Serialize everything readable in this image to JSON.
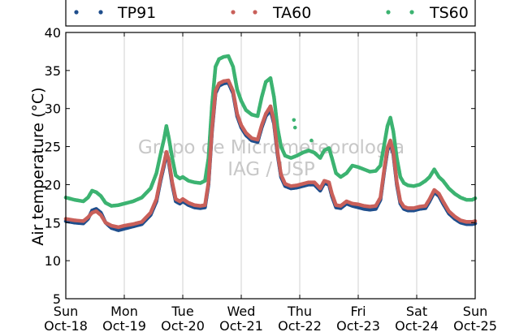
{
  "chart_data": {
    "type": "scatter",
    "ylabel": "Air temperature (°C)",
    "ylim": [
      5,
      40
    ],
    "yticks": [
      5,
      10,
      15,
      20,
      25,
      30,
      35,
      40
    ],
    "xlim": [
      0,
      7
    ],
    "xticks": [
      {
        "x": 0,
        "day": "Sun",
        "date": "Oct-18"
      },
      {
        "x": 1,
        "day": "Mon",
        "date": "Oct-19"
      },
      {
        "x": 2,
        "day": "Tue",
        "date": "Oct-20"
      },
      {
        "x": 3,
        "day": "Wed",
        "date": "Oct-21"
      },
      {
        "x": 4,
        "day": "Thu",
        "date": "Oct-22"
      },
      {
        "x": 5,
        "day": "Fri",
        "date": "Oct-23"
      },
      {
        "x": 6,
        "day": "Sat",
        "date": "Oct-24"
      },
      {
        "x": 7,
        "day": "Sun",
        "date": "Oct-25"
      }
    ],
    "grid": "vertical",
    "legend_position": "top",
    "watermark": [
      "Grupo de Micrometeorologia",
      "IAG / USP"
    ],
    "series": [
      {
        "name": "TP91",
        "color": "#1f4e8c",
        "points": [
          [
            0.0,
            15.2
          ],
          [
            0.15,
            15.0
          ],
          [
            0.3,
            14.9
          ],
          [
            0.38,
            15.5
          ],
          [
            0.45,
            16.6
          ],
          [
            0.52,
            16.8
          ],
          [
            0.6,
            16.3
          ],
          [
            0.68,
            15.0
          ],
          [
            0.78,
            14.3
          ],
          [
            0.9,
            14.0
          ],
          [
            1.0,
            14.2
          ],
          [
            1.15,
            14.5
          ],
          [
            1.3,
            14.8
          ],
          [
            1.45,
            16.0
          ],
          [
            1.55,
            17.8
          ],
          [
            1.62,
            20.5
          ],
          [
            1.68,
            22.5
          ],
          [
            1.72,
            24.0
          ],
          [
            1.76,
            23.0
          ],
          [
            1.82,
            20.0
          ],
          [
            1.88,
            17.8
          ],
          [
            1.95,
            17.5
          ],
          [
            2.0,
            17.8
          ],
          [
            2.1,
            17.3
          ],
          [
            2.2,
            17.0
          ],
          [
            2.3,
            16.9
          ],
          [
            2.38,
            17.0
          ],
          [
            2.44,
            20.0
          ],
          [
            2.5,
            27.0
          ],
          [
            2.56,
            32.0
          ],
          [
            2.62,
            33.0
          ],
          [
            2.7,
            33.3
          ],
          [
            2.78,
            33.4
          ],
          [
            2.86,
            32.0
          ],
          [
            2.93,
            29.0
          ],
          [
            3.0,
            27.5
          ],
          [
            3.08,
            26.5
          ],
          [
            3.18,
            25.8
          ],
          [
            3.28,
            25.6
          ],
          [
            3.35,
            27.5
          ],
          [
            3.42,
            29.0
          ],
          [
            3.5,
            29.8
          ],
          [
            3.56,
            28.0
          ],
          [
            3.62,
            24.0
          ],
          [
            3.68,
            21.0
          ],
          [
            3.75,
            19.8
          ],
          [
            3.85,
            19.5
          ],
          [
            3.95,
            19.6
          ],
          [
            4.05,
            19.8
          ],
          [
            4.15,
            20.0
          ],
          [
            4.25,
            20.0
          ],
          [
            4.35,
            19.2
          ],
          [
            4.42,
            20.2
          ],
          [
            4.5,
            20.0
          ],
          [
            4.55,
            18.5
          ],
          [
            4.62,
            17.0
          ],
          [
            4.7,
            16.9
          ],
          [
            4.8,
            17.5
          ],
          [
            4.9,
            17.2
          ],
          [
            5.0,
            17.0
          ],
          [
            5.1,
            16.8
          ],
          [
            5.2,
            16.7
          ],
          [
            5.3,
            16.8
          ],
          [
            5.38,
            18.0
          ],
          [
            5.45,
            22.0
          ],
          [
            5.5,
            24.5
          ],
          [
            5.55,
            25.5
          ],
          [
            5.6,
            24.0
          ],
          [
            5.66,
            20.0
          ],
          [
            5.72,
            17.5
          ],
          [
            5.78,
            16.8
          ],
          [
            5.85,
            16.6
          ],
          [
            5.95,
            16.6
          ],
          [
            6.05,
            16.8
          ],
          [
            6.15,
            16.9
          ],
          [
            6.22,
            17.8
          ],
          [
            6.3,
            19.0
          ],
          [
            6.38,
            18.5
          ],
          [
            6.45,
            17.5
          ],
          [
            6.55,
            16.2
          ],
          [
            6.65,
            15.5
          ],
          [
            6.75,
            15.0
          ],
          [
            6.85,
            14.8
          ],
          [
            6.95,
            14.8
          ],
          [
            7.0,
            14.9
          ]
        ]
      },
      {
        "name": "TA60",
        "color": "#c9605a",
        "points": [
          [
            0.0,
            15.5
          ],
          [
            0.15,
            15.3
          ],
          [
            0.3,
            15.2
          ],
          [
            0.38,
            15.7
          ],
          [
            0.45,
            16.3
          ],
          [
            0.52,
            16.5
          ],
          [
            0.6,
            16.0
          ],
          [
            0.68,
            15.0
          ],
          [
            0.78,
            14.6
          ],
          [
            0.9,
            14.4
          ],
          [
            1.0,
            14.6
          ],
          [
            1.15,
            14.8
          ],
          [
            1.3,
            15.1
          ],
          [
            1.45,
            16.3
          ],
          [
            1.55,
            18.1
          ],
          [
            1.62,
            20.8
          ],
          [
            1.68,
            22.8
          ],
          [
            1.72,
            24.3
          ],
          [
            1.76,
            23.3
          ],
          [
            1.82,
            20.3
          ],
          [
            1.88,
            18.1
          ],
          [
            1.95,
            17.8
          ],
          [
            2.0,
            18.1
          ],
          [
            2.1,
            17.6
          ],
          [
            2.2,
            17.3
          ],
          [
            2.3,
            17.2
          ],
          [
            2.38,
            17.3
          ],
          [
            2.44,
            20.3
          ],
          [
            2.5,
            27.3
          ],
          [
            2.56,
            32.3
          ],
          [
            2.62,
            33.3
          ],
          [
            2.7,
            33.6
          ],
          [
            2.78,
            33.7
          ],
          [
            2.86,
            32.3
          ],
          [
            2.93,
            29.3
          ],
          [
            3.0,
            27.8
          ],
          [
            3.08,
            26.8
          ],
          [
            3.18,
            26.1
          ],
          [
            3.28,
            25.9
          ],
          [
            3.35,
            27.8
          ],
          [
            3.42,
            29.3
          ],
          [
            3.5,
            30.3
          ],
          [
            3.56,
            28.3
          ],
          [
            3.62,
            24.3
          ],
          [
            3.68,
            21.3
          ],
          [
            3.75,
            20.1
          ],
          [
            3.85,
            19.8
          ],
          [
            3.95,
            19.9
          ],
          [
            4.05,
            20.1
          ],
          [
            4.15,
            20.3
          ],
          [
            4.25,
            20.3
          ],
          [
            4.35,
            19.5
          ],
          [
            4.42,
            20.5
          ],
          [
            4.5,
            20.3
          ],
          [
            4.55,
            18.8
          ],
          [
            4.62,
            17.3
          ],
          [
            4.7,
            17.2
          ],
          [
            4.8,
            17.8
          ],
          [
            4.9,
            17.5
          ],
          [
            5.0,
            17.4
          ],
          [
            5.1,
            17.2
          ],
          [
            5.2,
            17.1
          ],
          [
            5.3,
            17.2
          ],
          [
            5.38,
            18.3
          ],
          [
            5.45,
            22.3
          ],
          [
            5.5,
            24.8
          ],
          [
            5.55,
            25.8
          ],
          [
            5.6,
            24.3
          ],
          [
            5.66,
            20.3
          ],
          [
            5.72,
            17.8
          ],
          [
            5.78,
            17.1
          ],
          [
            5.85,
            16.9
          ],
          [
            5.95,
            16.9
          ],
          [
            6.05,
            17.1
          ],
          [
            6.15,
            17.2
          ],
          [
            6.22,
            18.1
          ],
          [
            6.3,
            19.3
          ],
          [
            6.38,
            18.8
          ],
          [
            6.45,
            17.8
          ],
          [
            6.55,
            16.5
          ],
          [
            6.65,
            15.8
          ],
          [
            6.75,
            15.3
          ],
          [
            6.85,
            15.1
          ],
          [
            6.95,
            15.1
          ],
          [
            7.0,
            15.2
          ]
        ]
      },
      {
        "name": "TS60",
        "color": "#3cb371",
        "points": [
          [
            0.0,
            18.3
          ],
          [
            0.15,
            18.0
          ],
          [
            0.3,
            17.8
          ],
          [
            0.38,
            18.3
          ],
          [
            0.45,
            19.2
          ],
          [
            0.52,
            19.0
          ],
          [
            0.6,
            18.5
          ],
          [
            0.68,
            17.6
          ],
          [
            0.78,
            17.2
          ],
          [
            0.9,
            17.3
          ],
          [
            1.0,
            17.5
          ],
          [
            1.15,
            17.8
          ],
          [
            1.3,
            18.3
          ],
          [
            1.45,
            19.5
          ],
          [
            1.55,
            21.5
          ],
          [
            1.62,
            24.0
          ],
          [
            1.68,
            26.0
          ],
          [
            1.72,
            27.7
          ],
          [
            1.76,
            26.2
          ],
          [
            1.82,
            23.5
          ],
          [
            1.88,
            21.2
          ],
          [
            1.95,
            20.8
          ],
          [
            2.0,
            21.0
          ],
          [
            2.1,
            20.5
          ],
          [
            2.2,
            20.3
          ],
          [
            2.3,
            20.2
          ],
          [
            2.38,
            20.5
          ],
          [
            2.44,
            23.5
          ],
          [
            2.5,
            30.5
          ],
          [
            2.56,
            35.5
          ],
          [
            2.62,
            36.5
          ],
          [
            2.7,
            36.8
          ],
          [
            2.78,
            36.9
          ],
          [
            2.86,
            35.5
          ],
          [
            2.93,
            32.5
          ],
          [
            3.0,
            31.0
          ],
          [
            3.08,
            29.8
          ],
          [
            3.18,
            29.2
          ],
          [
            3.28,
            29.0
          ],
          [
            3.35,
            31.5
          ],
          [
            3.42,
            33.5
          ],
          [
            3.5,
            34.0
          ],
          [
            3.56,
            31.5
          ],
          [
            3.62,
            27.5
          ],
          [
            3.68,
            25.0
          ],
          [
            3.75,
            23.8
          ],
          [
            3.85,
            23.5
          ],
          [
            3.95,
            23.8
          ],
          [
            4.05,
            24.2
          ],
          [
            4.15,
            24.5
          ],
          [
            4.25,
            24.2
          ],
          [
            4.35,
            23.5
          ],
          [
            4.42,
            24.5
          ],
          [
            4.5,
            24.8
          ],
          [
            4.55,
            23.5
          ],
          [
            4.62,
            21.5
          ],
          [
            4.7,
            21.0
          ],
          [
            4.8,
            21.5
          ],
          [
            4.9,
            22.5
          ],
          [
            5.0,
            22.3
          ],
          [
            5.1,
            22.0
          ],
          [
            5.2,
            21.7
          ],
          [
            5.3,
            21.8
          ],
          [
            5.38,
            22.5
          ],
          [
            5.45,
            25.5
          ],
          [
            5.5,
            27.7
          ],
          [
            5.55,
            28.8
          ],
          [
            5.6,
            27.0
          ],
          [
            5.66,
            23.5
          ],
          [
            5.72,
            21.0
          ],
          [
            5.78,
            20.2
          ],
          [
            5.85,
            19.9
          ],
          [
            5.95,
            19.8
          ],
          [
            6.05,
            20.0
          ],
          [
            6.15,
            20.5
          ],
          [
            6.22,
            21.0
          ],
          [
            6.3,
            22.0
          ],
          [
            6.38,
            21.0
          ],
          [
            6.45,
            20.5
          ],
          [
            6.55,
            19.5
          ],
          [
            6.65,
            18.8
          ],
          [
            6.75,
            18.3
          ],
          [
            6.85,
            18.0
          ],
          [
            6.95,
            18.0
          ],
          [
            7.0,
            18.2
          ]
        ]
      }
    ],
    "isolated_points": [
      {
        "series": "TS60",
        "x": 3.9,
        "y": 28.5
      },
      {
        "series": "TS60",
        "x": 3.92,
        "y": 27.5
      },
      {
        "series": "TS60",
        "x": 4.2,
        "y": 25.8
      }
    ]
  }
}
